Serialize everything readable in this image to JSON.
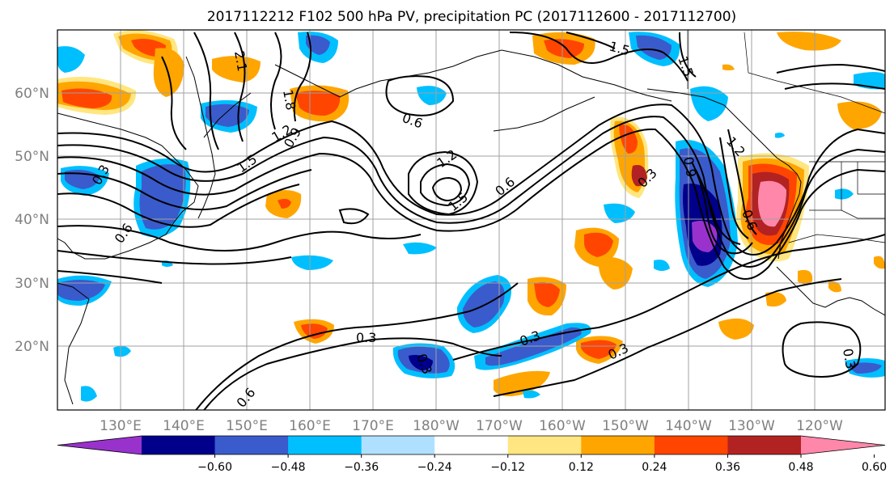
{
  "title": "2017112212 F102 500 hPa PV, precipitation PC (2017112600 - 2017112700)",
  "lon_ticks": [
    "130°E",
    "140°E",
    "150°E",
    "160°E",
    "170°E",
    "180°W",
    "170°W",
    "160°W",
    "150°W",
    "140°W",
    "130°W",
    "120°W"
  ],
  "lat_ticks": [
    "60°N",
    "50°N",
    "40°N",
    "30°N",
    "20°N"
  ],
  "colorbar": {
    "ticks": [
      "−0.60",
      "−0.48",
      "−0.36",
      "−0.24",
      "−0.12",
      "0.12",
      "0.24",
      "0.36",
      "0.48",
      "0.60"
    ],
    "colors": [
      "#9932cc",
      "#00008b",
      "#3a5bcb",
      "#00bfff",
      "#b0e0ff",
      "#ffffff",
      "#ffe680",
      "#ffa500",
      "#ff4500",
      "#b22222",
      "#ff88aa"
    ]
  },
  "contour_labels": [
    "2.1",
    "1.8",
    "1.5",
    "1.2",
    "0.9",
    "0.6",
    "0.3",
    "0.3",
    "0.3",
    "0.3",
    "0.3",
    "0.6",
    "1.2",
    "1.5",
    "0.6",
    "1.5",
    "1.5",
    "1.2",
    "0.9",
    "0.6",
    "0.6",
    "0.3",
    "0.3"
  ]
}
